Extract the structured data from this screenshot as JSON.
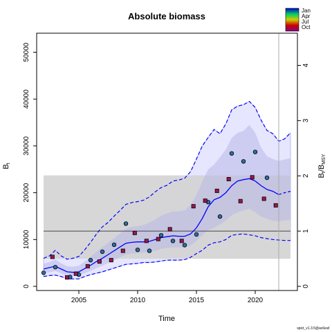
{
  "chart_data": {
    "type": "line",
    "title": "Absolute biomass",
    "xlabel": "Time",
    "ylabel": "B",
    "ylabel_sub": "t",
    "y2label": "B",
    "y2label_sub": "t",
    "y2label_tail": "/B",
    "y2label_sub2": "MSY",
    "footer": "spict_v1.3.5@ac6eaf",
    "xlim": [
      2002,
      2023
    ],
    "ylim": [
      0,
      52000
    ],
    "y2lim": [
      0,
      4.4
    ],
    "x_ticks": [
      2005,
      2010,
      2015,
      2020
    ],
    "y_ticks": [
      0,
      10000,
      20000,
      30000,
      40000,
      50000
    ],
    "y2_ticks": [
      0,
      1,
      2,
      3,
      4
    ],
    "bmsy": 11800,
    "bmsy_band": [
      5900,
      23700
    ],
    "vline_x": 2022,
    "colors": {
      "estimate": "#0000ff",
      "ci_fill": "#e0e0ff",
      "ci_fill_inner": "#c8c8ee",
      "band": "#d3d3d3",
      "ref_line": "#444444",
      "vline": "#aaaaaa"
    },
    "legend": {
      "entries": [
        "Jan",
        "Apr",
        "Jul",
        "Oct"
      ],
      "colors": [
        "#0000cc",
        "#00cc66",
        "#cccc00",
        "#cc0000",
        "#880088"
      ]
    },
    "estimate": {
      "x": [
        2002.0,
        2002.5,
        2003.0,
        2003.5,
        2004.0,
        2004.5,
        2005.0,
        2005.5,
        2006.0,
        2006.5,
        2007.0,
        2007.5,
        2008.0,
        2008.5,
        2009.0,
        2009.5,
        2010.0,
        2010.5,
        2011.0,
        2011.5,
        2012.0,
        2012.5,
        2013.0,
        2013.5,
        2014.0,
        2014.5,
        2015.0,
        2015.5,
        2016.0,
        2016.5,
        2017.0,
        2017.5,
        2018.0,
        2018.5,
        2019.0,
        2019.5,
        2020.0,
        2020.5,
        2021.0,
        2021.5,
        2022.0
      ],
      "y": [
        3700,
        4000,
        4300,
        3700,
        3100,
        3000,
        3100,
        3800,
        4500,
        5300,
        6000,
        6800,
        7600,
        8400,
        9200,
        9400,
        9500,
        9500,
        9600,
        10000,
        10400,
        10600,
        10800,
        10700,
        10700,
        11200,
        12500,
        14500,
        17000,
        18500,
        19000,
        20000,
        21500,
        22500,
        22800,
        23000,
        22500,
        21500,
        20700,
        20300,
        19600
      ]
    },
    "forecast": {
      "x": [
        2022.0,
        2022.5,
        2023.0
      ],
      "y": [
        19600,
        20000,
        20300
      ]
    },
    "ci_upper": {
      "x": [
        2002.0,
        2002.5,
        2003.0,
        2003.5,
        2004.0,
        2004.5,
        2005.0,
        2005.5,
        2006.0,
        2006.5,
        2007.0,
        2007.5,
        2008.0,
        2008.5,
        2009.0,
        2009.5,
        2010.0,
        2010.5,
        2011.0,
        2011.5,
        2012.0,
        2012.5,
        2013.0,
        2013.5,
        2014.0,
        2014.5,
        2015.0,
        2015.5,
        2016.0,
        2016.5,
        2017.0,
        2017.5,
        2018.0,
        2018.5,
        2019.0,
        2019.5,
        2020.0,
        2020.5,
        2021.0,
        2021.5,
        2022.0,
        2022.5,
        2023.0
      ],
      "y": [
        6000,
        6500,
        7700,
        6500,
        5800,
        6000,
        6400,
        7800,
        9400,
        11200,
        12700,
        13700,
        15000,
        16200,
        17500,
        17900,
        18100,
        18400,
        19100,
        20200,
        21100,
        21600,
        22500,
        22700,
        23100,
        24500,
        27200,
        30000,
        31800,
        33500,
        32600,
        34700,
        37700,
        38500,
        38800,
        39500,
        38200,
        35500,
        33300,
        32600,
        31000,
        31500,
        32800
      ]
    },
    "ci_lower": {
      "x": [
        2002.0,
        2002.5,
        2003.0,
        2003.5,
        2004.0,
        2004.5,
        2005.0,
        2005.5,
        2006.0,
        2006.5,
        2007.0,
        2007.5,
        2008.0,
        2008.5,
        2009.0,
        2009.5,
        2010.0,
        2010.5,
        2011.0,
        2011.5,
        2012.0,
        2012.5,
        2013.0,
        2013.5,
        2014.0,
        2014.5,
        2015.0,
        2015.5,
        2016.0,
        2016.5,
        2017.0,
        2017.5,
        2018.0,
        2018.5,
        2019.0,
        2019.5,
        2020.0,
        2020.5,
        2021.0,
        2021.5,
        2022.0,
        2022.5,
        2023.0
      ],
      "y": [
        2100,
        2300,
        2400,
        2100,
        1600,
        1600,
        1600,
        2100,
        2500,
        2800,
        3100,
        3500,
        3900,
        4300,
        4700,
        4800,
        4900,
        5100,
        5100,
        5200,
        5400,
        5600,
        5600,
        5600,
        5700,
        6200,
        7000,
        7700,
        8800,
        9300,
        9500,
        10000,
        10900,
        11100,
        11200,
        11000,
        10800,
        10400,
        10200,
        10000,
        9900,
        9800,
        9800
      ]
    },
    "inner_upper": {
      "x": [
        2002.0,
        2002.5,
        2003.0,
        2003.5,
        2004.0,
        2004.5,
        2005.0,
        2005.5,
        2006.0,
        2006.5,
        2007.0,
        2007.5,
        2008.0,
        2008.5,
        2009.0,
        2009.5,
        2010.0,
        2010.5,
        2011.0,
        2011.5,
        2012.0,
        2012.5,
        2013.0,
        2013.5,
        2014.0,
        2014.5,
        2015.0,
        2015.5,
        2016.0,
        2016.5,
        2017.0,
        2017.5,
        2018.0,
        2018.5,
        2019.0,
        2019.5,
        2020.0,
        2020.5,
        2021.0,
        2021.5,
        2022.0,
        2022.5,
        2023.0
      ],
      "y": [
        4800,
        5200,
        5700,
        4900,
        4300,
        4200,
        4400,
        5300,
        6300,
        7400,
        8400,
        9300,
        10300,
        11300,
        12300,
        12700,
        12900,
        13100,
        13600,
        14300,
        15100,
        15600,
        16000,
        16000,
        16300,
        17400,
        19500,
        22400,
        25000,
        26000,
        27600,
        29200,
        31700,
        32800,
        33200,
        34500,
        32800,
        29600,
        27800,
        27200,
        26800,
        27100,
        27400
      ]
    },
    "inner_lower": {
      "x": [
        2002.0,
        2002.5,
        2003.0,
        2003.5,
        2004.0,
        2004.5,
        2005.0,
        2005.5,
        2006.0,
        2006.5,
        2007.0,
        2007.5,
        2008.0,
        2008.5,
        2009.0,
        2009.5,
        2010.0,
        2010.5,
        2011.0,
        2011.5,
        2012.0,
        2012.5,
        2013.0,
        2013.5,
        2014.0,
        2014.5,
        2015.0,
        2015.5,
        2016.0,
        2016.5,
        2017.0,
        2017.5,
        2018.0,
        2018.5,
        2019.0,
        2019.5,
        2020.0,
        2020.5,
        2021.0,
        2021.5,
        2022.0,
        2022.5,
        2023.0
      ],
      "y": [
        2800,
        3000,
        3300,
        2800,
        2200,
        2200,
        2300,
        2800,
        3300,
        3900,
        4400,
        5000,
        5600,
        6200,
        6800,
        7000,
        7100,
        7200,
        7300,
        7600,
        8000,
        8200,
        8300,
        8300,
        8300,
        8700,
        9700,
        10900,
        12000,
        12500,
        13200,
        14100,
        15200,
        15800,
        16200,
        16600,
        15800,
        14900,
        14400,
        14000,
        13900,
        14100,
        14200
      ]
    },
    "series": [
      {
        "x": [
          2002.0,
          2003.0,
          2004.25,
          2005.0,
          2006.0,
          2007.0,
          2008.0,
          2009.0,
          2010.0,
          2011.0,
          2012.0,
          2013.0,
          2014.0,
          2015.0,
          2016.0,
          2017.0,
          2018.0,
          2019.0,
          2020.0,
          2021.0
        ],
        "y": [
          2900,
          4100,
          2000,
          2500,
          5600,
          7400,
          8900,
          13400,
          7800,
          7600,
          10900,
          9700,
          8800,
          11100,
          18000,
          14900,
          28400,
          26700,
          28700,
          23200
        ],
        "marker": "circle",
        "color": "#2d6fa0"
      },
      {
        "x": [
          2002.75,
          2004.0,
          2004.75,
          2005.75,
          2006.75,
          2007.75,
          2008.75,
          2009.75,
          2010.75,
          2011.75,
          2012.75,
          2013.75,
          2014.75,
          2015.75,
          2016.75,
          2017.75,
          2018.75,
          2019.75,
          2020.75,
          2021.75
        ],
        "y": [
          6300,
          1900,
          2700,
          4300,
          5300,
          5600,
          7600,
          11400,
          9700,
          10100,
          12200,
          9700,
          17100,
          18300,
          20400,
          22900,
          18200,
          23300,
          18700,
          17300
        ],
        "marker": "square",
        "color": "#a0144f"
      }
    ]
  }
}
